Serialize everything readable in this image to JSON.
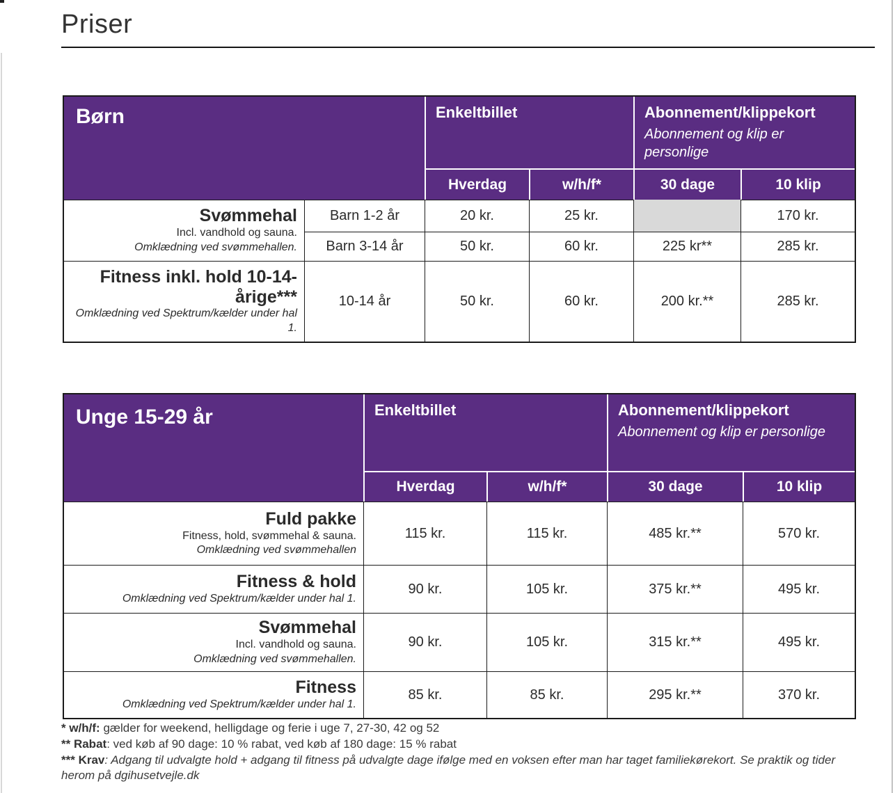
{
  "page": {
    "title": "Priser"
  },
  "colors": {
    "header_bg": "#5a2d82",
    "header_text": "#ffffff",
    "empty_cell_bg": "#d9d9d9",
    "border": "#1a1a1a"
  },
  "born": {
    "title": "Børn",
    "group_single": "Enkeltbillet",
    "group_multi": "Abonnement/klippekort",
    "group_multi_note": "Abonnement og klip er personlige",
    "cols": [
      "Hverdag",
      "w/h/f*",
      "30 dage",
      "10 klip"
    ],
    "svommehal": {
      "name": "Svømmehal",
      "desc": "Incl. vandhold og sauna.",
      "desc_italic": "Omklædning ved svømmehallen.",
      "rows": [
        {
          "age": "Barn 1-2 år",
          "hverdag": "20 kr.",
          "whf": "25 kr.",
          "dage30": "",
          "klip10": "170 kr."
        },
        {
          "age": "Barn 3-14 år",
          "hverdag": "50 kr.",
          "whf": "60 kr.",
          "dage30": "225 kr**",
          "klip10": "285 kr."
        }
      ]
    },
    "fitness": {
      "name": "Fitness inkl. hold 10-14-årige***",
      "desc_italic": "Omklædning ved Spektrum/kælder under hal 1.",
      "age": "10-14 år",
      "hverdag": "50 kr.",
      "whf": "60 kr.",
      "dage30": "200 kr.**",
      "klip10": "285 kr."
    }
  },
  "unge": {
    "title": "Unge 15-29 år",
    "group_single": "Enkeltbillet",
    "group_multi": "Abonnement/klippekort",
    "group_multi_note": "Abonnement og klip er personlige",
    "cols": [
      "Hverdag",
      "w/h/f*",
      "30 dage",
      "10 klip"
    ],
    "rows": [
      {
        "name": "Fuld pakke",
        "desc": "Fitness, hold, svømmehal & sauna.",
        "desc_italic": "Omklædning ved svømmehallen",
        "prices": [
          "115 kr.",
          "115 kr.",
          "485 kr.**",
          "570 kr."
        ]
      },
      {
        "name": "Fitness & hold",
        "desc": "",
        "desc_italic": "Omklædning ved Spektrum/kælder under hal 1.",
        "prices": [
          "90 kr.",
          "105 kr.",
          "375 kr.**",
          "495 kr."
        ]
      },
      {
        "name": "Svømmehal",
        "desc": "Incl. vandhold og sauna.",
        "desc_italic": "Omklædning ved svømmehallen.",
        "prices": [
          "90 kr.",
          "105 kr.",
          "315 kr.**",
          "495 kr."
        ]
      },
      {
        "name": "Fitness",
        "desc": "",
        "desc_italic": "Omklædning ved Spektrum/kælder under hal 1.",
        "prices": [
          "85 kr.",
          "85 kr.",
          "295 kr.**",
          "370 kr."
        ]
      }
    ]
  },
  "footnotes": [
    {
      "bold": "* w/h/f:",
      "rest": " gælder for weekend, helligdage og ferie i uge 7, 27-30, 42 og 52"
    },
    {
      "bold": "** Rabat",
      "rest": ": ved køb af 90 dage: 10 % rabat, ved køb af 180 dage: 15 % rabat"
    },
    {
      "bold": "*** Krav",
      "rest": ": Adgang til udvalgte hold + adgang til fitness på udvalgte dage ifølge med en voksen efter man har taget familiekørekort. Se praktik og tider herom på dgihusetvejle.dk"
    }
  ]
}
